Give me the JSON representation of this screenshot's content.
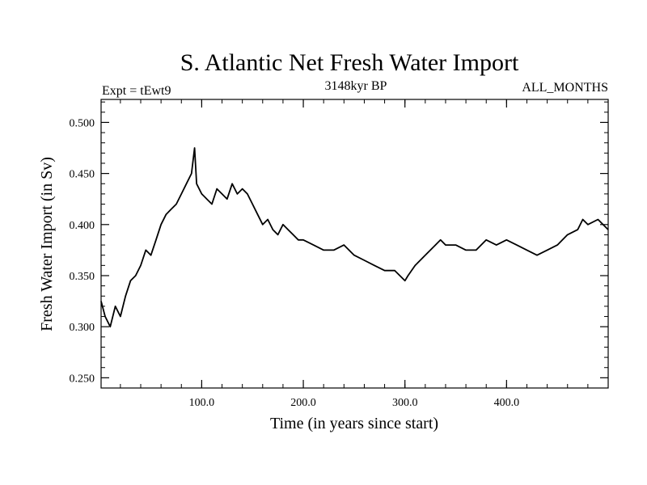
{
  "chart_data": {
    "type": "line",
    "title": "S. Atlantic Net Fresh Water Import",
    "subtitle_left": "Expt = tEwt9",
    "subtitle_center": "3148kyr BP",
    "subtitle_right": "ALL_MONTHS",
    "xlabel": "Time (in years since start)",
    "ylabel": "Fresh Water Import (in Sv)",
    "xlim": [
      1,
      500
    ],
    "ylim": [
      0.24,
      0.5225
    ],
    "x_ticks": [
      100,
      200,
      300,
      400
    ],
    "x_tick_labels": [
      "100.0",
      "200.0",
      "300.0",
      "400.0"
    ],
    "y_ticks": [
      0.25,
      0.3,
      0.35,
      0.4,
      0.45,
      0.5
    ],
    "y_tick_labels": [
      "0.250",
      "0.300",
      "0.350",
      "0.400",
      "0.450",
      "0.500"
    ],
    "grid": false,
    "series": [
      {
        "name": "Fresh Water Import",
        "x": [
          1,
          5,
          10,
          15,
          20,
          25,
          30,
          35,
          40,
          45,
          50,
          55,
          60,
          65,
          70,
          75,
          80,
          85,
          90,
          93,
          95,
          100,
          105,
          110,
          115,
          120,
          125,
          130,
          135,
          140,
          145,
          150,
          155,
          160,
          165,
          170,
          175,
          180,
          185,
          190,
          195,
          200,
          210,
          220,
          230,
          240,
          250,
          260,
          270,
          280,
          290,
          300,
          303,
          310,
          320,
          330,
          335,
          340,
          350,
          360,
          370,
          380,
          390,
          400,
          410,
          420,
          430,
          440,
          450,
          460,
          470,
          475,
          480,
          490,
          500
        ],
        "values": [
          0.325,
          0.31,
          0.3,
          0.32,
          0.31,
          0.33,
          0.345,
          0.35,
          0.36,
          0.375,
          0.37,
          0.385,
          0.4,
          0.41,
          0.415,
          0.42,
          0.43,
          0.44,
          0.45,
          0.475,
          0.44,
          0.43,
          0.425,
          0.42,
          0.435,
          0.43,
          0.425,
          0.44,
          0.43,
          0.435,
          0.43,
          0.42,
          0.41,
          0.4,
          0.405,
          0.395,
          0.39,
          0.4,
          0.395,
          0.39,
          0.385,
          0.385,
          0.38,
          0.375,
          0.375,
          0.38,
          0.37,
          0.365,
          0.36,
          0.355,
          0.355,
          0.345,
          0.35,
          0.36,
          0.37,
          0.38,
          0.385,
          0.38,
          0.38,
          0.375,
          0.375,
          0.385,
          0.38,
          0.385,
          0.38,
          0.375,
          0.37,
          0.375,
          0.38,
          0.39,
          0.395,
          0.405,
          0.4,
          0.405,
          0.395
        ]
      }
    ]
  }
}
